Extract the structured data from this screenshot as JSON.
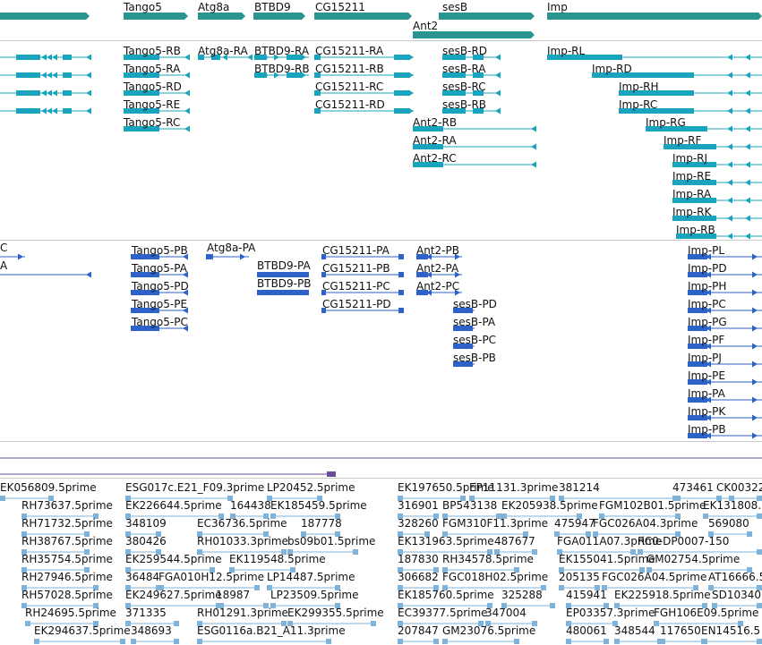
{
  "colors": {
    "gene": "#2a9490",
    "mrna": "#1aa3bd",
    "protein": "#2f62c8",
    "est": "#7fb3da",
    "scaffold": "#6a4c9c",
    "separator": "#c9c9c9"
  },
  "genes": [
    "Tango5",
    "Atg8a",
    "BTBD9",
    "CG15211",
    "sesB",
    "Ant2",
    "Imp"
  ],
  "transcripts": [
    "Tango5-RB",
    "Tango5-RA",
    "Tango5-RD",
    "Tango5-RE",
    "Tango5-RC",
    "Atg8a-RA",
    "BTBD9-RA",
    "BTBD9-RB",
    "CG15211-RA",
    "CG15211-RB",
    "CG15211-RC",
    "CG15211-RD",
    "sesB-RD",
    "sesB-RA",
    "sesB-RC",
    "sesB-RB",
    "Ant2-RB",
    "Ant2-RA",
    "Ant2-RC",
    "Imp-RL",
    "Imp-RD",
    "Imp-RH",
    "Imp-RC",
    "Imp-RG",
    "Imp-RF",
    "Imp-RJ",
    "Imp-RE",
    "Imp-RA",
    "Imp-RK",
    "Imp-RB"
  ],
  "proteins": [
    "C",
    "A",
    "Tango5-PB",
    "Tango5-PA",
    "Tango5-PD",
    "Tango5-PE",
    "Tango5-PC",
    "Atg8a-PA",
    "BTBD9-PA",
    "BTBD9-PB",
    "CG15211-PA",
    "CG15211-PB",
    "CG15211-PC",
    "CG15211-PD",
    "Ant2-PB",
    "Ant2-PA",
    "Ant2-PC",
    "sesB-PD",
    "sesB-PA",
    "sesB-PC",
    "sesB-PB",
    "Imp-PL",
    "Imp-PD",
    "Imp-PH",
    "Imp-PC",
    "Imp-PG",
    "Imp-PF",
    "Imp-PJ",
    "Imp-PE",
    "Imp-PA",
    "Imp-PK",
    "Imp-PB"
  ],
  "ests": [
    "EK056809.5prime",
    "ESG017c.E21_F09.3prime",
    "LP20452.5prime",
    "EK197650.5prime",
    "EP11131.3prime",
    "381214",
    "473461",
    "CK00322",
    "RH73637.5prime",
    "EK226644.5prime",
    "164438",
    "EK185459.5prime",
    "316901",
    "BP543138",
    "EK205938.5prime",
    "FGM102B01.5prime",
    "EK131808.",
    "RH71732.5prime",
    "348109",
    "EC36736.5prime",
    "187778",
    "328260",
    "FGM310F11.3prime",
    "475947",
    "FGC026A04.3prime",
    "569080",
    "RH38767.5prime",
    "380426",
    "RH01033.3prime",
    "bs09b01.5prime",
    "EK131963.5prime",
    "487677",
    "FGA011A07.3prime",
    "RC0-DP0007-150",
    "RH35754.5prime",
    "EK259544.5prime",
    "EK119548.5prime",
    "187830",
    "RH34578.5prime",
    "EK155041.5prime",
    "GM02754.5prime",
    "RH27946.5prime",
    "36484",
    "FGA010H12.5prime",
    "LP14487.5prime",
    "306682",
    "FGC018H02.5prime",
    "205135",
    "FGC026A04.5prime",
    "AT16666.5",
    "RH57028.5prime",
    "EK249627.5prime",
    "18987",
    "LP23509.5prime",
    "EK185760.5prime",
    "325288",
    "415941",
    "EK225918.5prime",
    "SD10340",
    "RH24695.5prime",
    "371335",
    "RH01291.3prime",
    "EK299355.5prime",
    "EC39377.5prime",
    "347004",
    "EP03357.3prime",
    "FGH106E09.5prime",
    "EK294637.5prime",
    "348693",
    "ESG0116a.B21_A11.3prime",
    "207847",
    "GM23076.5prime",
    "480061",
    "348544",
    "117650",
    "EN14516.5"
  ]
}
